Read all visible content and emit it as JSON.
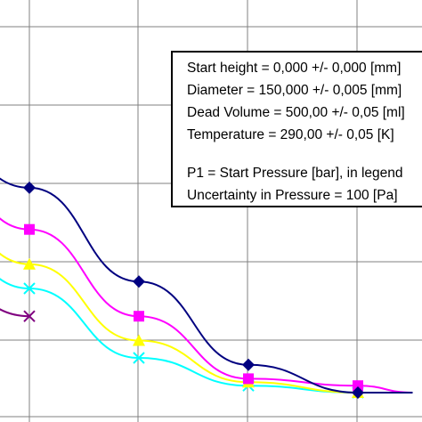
{
  "chart_data": {
    "type": "line",
    "title": "",
    "xlabel": "",
    "ylabel": "",
    "grid": true,
    "series": [
      {
        "color": "#000080",
        "marker": "diamond",
        "points": [
          [
            -1.0,
            0.8
          ],
          [
            1.0,
            0.59
          ],
          [
            3.0,
            0.32
          ],
          [
            5.0,
            0.08
          ],
          [
            7.0,
            0.0
          ],
          [
            8.0,
            0.0
          ]
        ]
      },
      {
        "color": "#ff00ff",
        "marker": "square",
        "points": [
          [
            -1.0,
            0.72
          ],
          [
            1.0,
            0.47
          ],
          [
            3.0,
            0.22
          ],
          [
            5.0,
            0.04
          ],
          [
            7.0,
            0.02
          ],
          [
            8.0,
            0.0
          ]
        ]
      },
      {
        "color": "#ffff00",
        "marker": "triangle",
        "points": [
          [
            -1.0,
            0.61
          ],
          [
            1.0,
            0.37
          ],
          [
            3.0,
            0.15
          ],
          [
            5.0,
            0.03
          ],
          [
            7.0,
            0.0
          ],
          [
            8.0,
            0.0
          ]
        ]
      },
      {
        "color": "#00ffff",
        "marker": "x",
        "points": [
          [
            -1.0,
            0.52
          ],
          [
            1.0,
            0.3
          ],
          [
            3.0,
            0.1
          ],
          [
            5.0,
            0.02
          ],
          [
            7.0,
            0.0
          ],
          [
            8.0,
            0.0
          ]
        ]
      },
      {
        "color": "#800080",
        "marker": "x",
        "points": [
          [
            -1.0,
            0.38
          ],
          [
            1.0,
            0.22
          ]
        ]
      }
    ]
  },
  "info_box": {
    "lines": [
      "Start height = 0,000 +/- 0,000 [mm]",
      "Diameter = 150,000 +/- 0,005 [mm]",
      "Dead Volume = 500,00 +/- 0,05 [ml]",
      "Temperature = 290,00 +/- 0,05 [K]"
    ],
    "notes": [
      "P1 = Start Pressure [bar], in legend",
      "Uncertainty in Pressure = 100 [Pa]"
    ]
  }
}
